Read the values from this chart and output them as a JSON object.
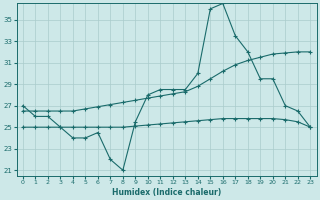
{
  "xlabel": "Humidex (Indice chaleur)",
  "background_color": "#cde8e8",
  "grid_color": "#aacccc",
  "line_color": "#1a6b6b",
  "xlim": [
    -0.5,
    23.5
  ],
  "ylim": [
    20.5,
    36.5
  ],
  "xticks": [
    0,
    1,
    2,
    3,
    4,
    5,
    6,
    7,
    8,
    9,
    10,
    11,
    12,
    13,
    14,
    15,
    16,
    17,
    18,
    19,
    20,
    21,
    22,
    23
  ],
  "yticks": [
    21,
    23,
    25,
    27,
    29,
    31,
    33,
    35
  ],
  "hours": [
    0,
    1,
    2,
    3,
    4,
    5,
    6,
    7,
    8,
    9,
    10,
    11,
    12,
    13,
    14,
    15,
    16,
    17,
    18,
    19,
    20,
    21,
    22,
    23
  ],
  "s_zigzag": [
    27,
    26,
    26,
    25,
    24,
    24,
    24.5,
    22,
    21,
    25.5,
    28,
    28.5,
    28.5,
    28.5,
    30,
    36,
    36.5,
    33.5,
    32,
    29.5,
    29.5,
    27,
    26.5,
    25
  ],
  "s_upper": [
    26.5,
    26.5,
    26.5,
    26.5,
    26.5,
    26.7,
    26.9,
    27.1,
    27.3,
    27.5,
    27.7,
    27.9,
    28.1,
    28.3,
    28.8,
    29.5,
    30.2,
    30.8,
    31.2,
    31.5,
    31.8,
    31.9,
    32.0,
    32.0
  ],
  "s_lower": [
    25.0,
    25.0,
    25.0,
    25.0,
    25.0,
    25.0,
    25.0,
    25.0,
    25.0,
    25.1,
    25.2,
    25.3,
    25.4,
    25.5,
    25.6,
    25.7,
    25.8,
    25.8,
    25.8,
    25.8,
    25.8,
    25.7,
    25.5,
    25.0
  ],
  "figsize": [
    3.2,
    2.0
  ],
  "dpi": 100
}
